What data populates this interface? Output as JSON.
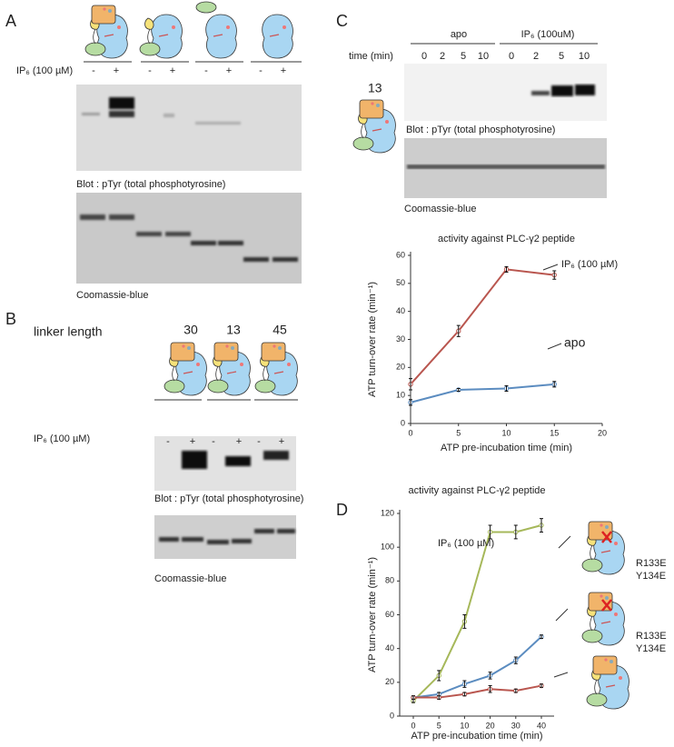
{
  "panel_a": {
    "label": "A",
    "treatment": "IP₆ (100 µM)",
    "lanes": [
      "-",
      "+",
      "-",
      "+",
      "-",
      "+",
      "-",
      "+"
    ],
    "blot_caption": "Blot : pTyr (total phosphotyrosine)",
    "stain_caption": "Coomassie-blue"
  },
  "panel_b": {
    "label": "B",
    "linker_title": "linker length",
    "linker_lengths": [
      "30",
      "13",
      "45"
    ],
    "treatment": "IP₆ (100 µM)",
    "lanes": [
      "-",
      "+",
      "-",
      "+",
      "-",
      "+"
    ],
    "blot_caption": "Blot : pTyr (total phosphotyrosine)",
    "stain_caption": "Coomassie-blue"
  },
  "panel_c": {
    "label": "C",
    "time_title": "time (min)",
    "conditions": [
      "apo",
      "IP₆ (100uM)"
    ],
    "times": [
      "0",
      "2",
      "5",
      "10",
      "0",
      "2",
      "5",
      "10"
    ],
    "linker": "13",
    "blot_caption": "Blot : pTyr (total phosphotyrosine)",
    "stain_caption": "Coomassie-blue"
  },
  "panel_d": {
    "label": "D"
  },
  "chart_data": [
    {
      "type": "line",
      "title": "activity against PLC-γ2 peptide",
      "x_label": "ATP pre-incubation time (min)",
      "y_label": "ATP turn-over rate (min⁻¹)",
      "x": [
        0,
        5,
        10,
        15
      ],
      "xlim": [
        0,
        20
      ],
      "xticks": [
        0,
        5,
        10,
        15,
        20
      ],
      "ylim": [
        0,
        60
      ],
      "yticks": [
        0,
        10,
        20,
        30,
        40,
        50,
        60
      ],
      "series": [
        {
          "name": "IP₆ (100 µM)",
          "color": "#b9564f",
          "values": [
            14,
            33,
            55,
            53
          ],
          "errors": [
            2,
            2,
            1,
            1.5
          ]
        },
        {
          "name": "apo",
          "color": "#5b8cc0",
          "values": [
            7.5,
            12,
            12.5,
            14
          ],
          "errors": [
            1,
            0.5,
            1,
            1
          ]
        }
      ]
    },
    {
      "type": "line",
      "title": "activity against PLC-γ2 peptide",
      "x_label": "ATP pre-incubation time (min)",
      "y_label": "ATP turn-over rate (min⁻¹)",
      "categories": [
        "0",
        "5",
        "10",
        "20",
        "30",
        "40"
      ],
      "ylim": [
        0,
        120
      ],
      "yticks": [
        0,
        20,
        40,
        60,
        80,
        100,
        120
      ],
      "series": [
        {
          "name": "IP₆ (100 µM)",
          "color": "#a6b85a",
          "values": [
            9,
            24,
            56,
            109,
            109,
            113
          ],
          "errors": [
            1,
            3,
            4,
            4,
            4,
            4
          ]
        },
        {
          "color": "#5b8cc0",
          "values": [
            11,
            13,
            19,
            24,
            33,
            47
          ],
          "errors": [
            1,
            1,
            2,
            2,
            2,
            1
          ]
        },
        {
          "color": "#b9564f",
          "values": [
            11,
            11,
            13,
            16,
            15,
            18
          ],
          "errors": [
            1,
            1,
            1,
            2,
            1,
            1
          ]
        }
      ],
      "annotations": [
        [
          "R133E",
          "Y134E"
        ],
        [
          "R133E",
          "Y134E"
        ]
      ]
    }
  ]
}
